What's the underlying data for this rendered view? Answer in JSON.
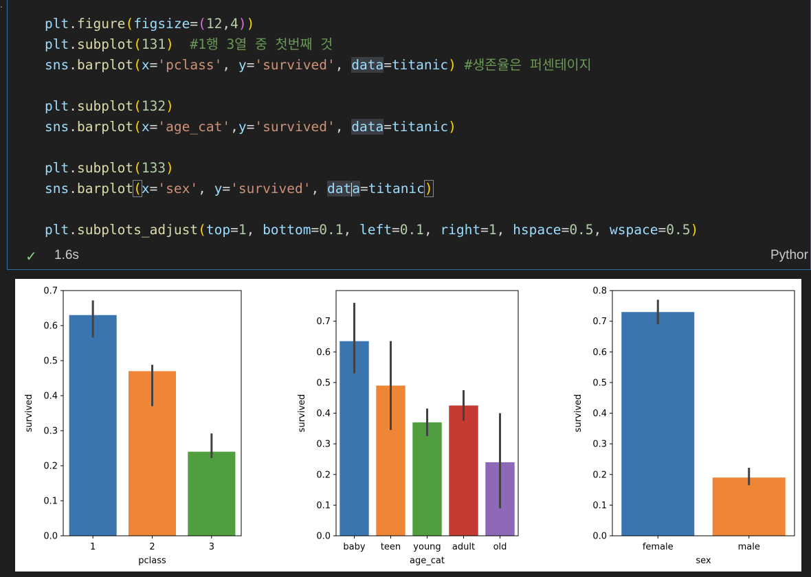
{
  "code_lines": [
    [
      {
        "t": "plt",
        "c": "var"
      },
      {
        "t": ".",
        "c": ""
      },
      {
        "t": "figure",
        "c": "fn"
      },
      {
        "t": "(",
        "c": "p1"
      },
      {
        "t": "figsize",
        "c": "kw"
      },
      {
        "t": "=",
        "c": ""
      },
      {
        "t": "(",
        "c": "p2"
      },
      {
        "t": "12",
        "c": "num"
      },
      {
        "t": ",",
        "c": ""
      },
      {
        "t": "4",
        "c": "num"
      },
      {
        "t": ")",
        "c": "p2"
      },
      {
        "t": ")",
        "c": "p1"
      }
    ],
    [
      {
        "t": "plt",
        "c": "var"
      },
      {
        "t": ".",
        "c": ""
      },
      {
        "t": "subplot",
        "c": "fn"
      },
      {
        "t": "(",
        "c": "p1"
      },
      {
        "t": "131",
        "c": "num"
      },
      {
        "t": ")",
        "c": "p1"
      },
      {
        "t": "  #1행 3열 중 첫번째 것",
        "c": "cm"
      }
    ],
    [
      {
        "t": "sns",
        "c": "var"
      },
      {
        "t": ".",
        "c": ""
      },
      {
        "t": "barplot",
        "c": "fn"
      },
      {
        "t": "(",
        "c": "p1"
      },
      {
        "t": "x",
        "c": "kw"
      },
      {
        "t": "=",
        "c": ""
      },
      {
        "t": "'pclass'",
        "c": "str"
      },
      {
        "t": ", ",
        "c": ""
      },
      {
        "t": "y",
        "c": "kw"
      },
      {
        "t": "=",
        "c": ""
      },
      {
        "t": "'survived'",
        "c": "str"
      },
      {
        "t": ", ",
        "c": ""
      },
      {
        "t": "data",
        "c": "kw hl"
      },
      {
        "t": "=",
        "c": ""
      },
      {
        "t": "titanic",
        "c": "var"
      },
      {
        "t": ")",
        "c": "p1"
      },
      {
        "t": " #생존율은 퍼센테이지",
        "c": "cm"
      }
    ],
    [],
    [
      {
        "t": "plt",
        "c": "var"
      },
      {
        "t": ".",
        "c": ""
      },
      {
        "t": "subplot",
        "c": "fn"
      },
      {
        "t": "(",
        "c": "p1"
      },
      {
        "t": "132",
        "c": "num"
      },
      {
        "t": ")",
        "c": "p1"
      }
    ],
    [
      {
        "t": "sns",
        "c": "var"
      },
      {
        "t": ".",
        "c": ""
      },
      {
        "t": "barplot",
        "c": "fn"
      },
      {
        "t": "(",
        "c": "p1"
      },
      {
        "t": "x",
        "c": "kw"
      },
      {
        "t": "=",
        "c": ""
      },
      {
        "t": "'age_cat'",
        "c": "str"
      },
      {
        "t": ",",
        "c": ""
      },
      {
        "t": "y",
        "c": "kw"
      },
      {
        "t": "=",
        "c": ""
      },
      {
        "t": "'survived'",
        "c": "str"
      },
      {
        "t": ", ",
        "c": ""
      },
      {
        "t": "data",
        "c": "kw hl"
      },
      {
        "t": "=",
        "c": ""
      },
      {
        "t": "titanic",
        "c": "var"
      },
      {
        "t": ")",
        "c": "p1"
      }
    ],
    [],
    [
      {
        "t": "plt",
        "c": "var"
      },
      {
        "t": ".",
        "c": ""
      },
      {
        "t": "subplot",
        "c": "fn"
      },
      {
        "t": "(",
        "c": "p1"
      },
      {
        "t": "133",
        "c": "num"
      },
      {
        "t": ")",
        "c": "p1"
      }
    ],
    [
      {
        "t": "sns",
        "c": "var"
      },
      {
        "t": ".",
        "c": ""
      },
      {
        "t": "barplot",
        "c": "fn"
      },
      {
        "t": "(",
        "c": "p1 pbox"
      },
      {
        "t": "x",
        "c": "kw"
      },
      {
        "t": "=",
        "c": ""
      },
      {
        "t": "'sex'",
        "c": "str"
      },
      {
        "t": ", ",
        "c": ""
      },
      {
        "t": "y",
        "c": "kw"
      },
      {
        "t": "=",
        "c": ""
      },
      {
        "t": "'survived'",
        "c": "str"
      },
      {
        "t": ", ",
        "c": ""
      },
      {
        "t": "dat",
        "c": "kw hl"
      },
      {
        "t": "|",
        "c": "cursor"
      },
      {
        "t": "a",
        "c": "kw hl"
      },
      {
        "t": "=",
        "c": ""
      },
      {
        "t": "titanic",
        "c": "var"
      },
      {
        "t": ")",
        "c": "p1 pbox"
      }
    ],
    [],
    [
      {
        "t": "plt",
        "c": "var"
      },
      {
        "t": ".",
        "c": ""
      },
      {
        "t": "subplots_adjust",
        "c": "fn"
      },
      {
        "t": "(",
        "c": "p1"
      },
      {
        "t": "top",
        "c": "kw"
      },
      {
        "t": "=",
        "c": ""
      },
      {
        "t": "1",
        "c": "num"
      },
      {
        "t": ", ",
        "c": ""
      },
      {
        "t": "bottom",
        "c": "kw"
      },
      {
        "t": "=",
        "c": ""
      },
      {
        "t": "0.1",
        "c": "num"
      },
      {
        "t": ", ",
        "c": ""
      },
      {
        "t": "left",
        "c": "kw"
      },
      {
        "t": "=",
        "c": ""
      },
      {
        "t": "0.1",
        "c": "num"
      },
      {
        "t": ", ",
        "c": ""
      },
      {
        "t": "right",
        "c": "kw"
      },
      {
        "t": "=",
        "c": ""
      },
      {
        "t": "1",
        "c": "num"
      },
      {
        "t": ", ",
        "c": ""
      },
      {
        "t": "hspace",
        "c": "kw"
      },
      {
        "t": "=",
        "c": ""
      },
      {
        "t": "0.5",
        "c": "num"
      },
      {
        "t": ", ",
        "c": ""
      },
      {
        "t": "wspace",
        "c": "kw"
      },
      {
        "t": "=",
        "c": ""
      },
      {
        "t": "0.5",
        "c": "num"
      },
      {
        "t": ")",
        "c": "p1"
      }
    ]
  ],
  "status": {
    "check_icon": "✓",
    "exec_time": "1.6s",
    "language": "Pythor"
  },
  "left_mark": ".",
  "chart_data": [
    {
      "type": "bar",
      "categories": [
        "1",
        "2",
        "3"
      ],
      "values": [
        0.63,
        0.47,
        0.24
      ],
      "error_low": [
        0.566,
        0.37,
        0.222
      ],
      "error_high": [
        0.672,
        0.488,
        0.292
      ],
      "colors": [
        "#3b75af",
        "#ef8636",
        "#519e3e"
      ],
      "xlabel": "pclass",
      "ylabel": "survived",
      "ylim": [
        0,
        0.7
      ],
      "yticks": [
        "0.0",
        "0.1",
        "0.2",
        "0.3",
        "0.4",
        "0.5",
        "0.6",
        "0.7"
      ]
    },
    {
      "type": "bar",
      "categories": [
        "baby",
        "teen",
        "young",
        "adult",
        "old"
      ],
      "values": [
        0.635,
        0.49,
        0.37,
        0.425,
        0.24
      ],
      "error_low": [
        0.53,
        0.345,
        0.325,
        0.375,
        0.09
      ],
      "error_high": [
        0.76,
        0.635,
        0.415,
        0.475,
        0.4
      ],
      "colors": [
        "#3b75af",
        "#ef8636",
        "#519e3e",
        "#c53a32",
        "#8d69b8"
      ],
      "xlabel": "age_cat",
      "ylabel": "survived",
      "ylim": [
        0,
        0.8
      ],
      "yticks": [
        "0.0",
        "0.1",
        "0.2",
        "0.3",
        "0.4",
        "0.5",
        "0.6",
        "0.7"
      ]
    },
    {
      "type": "bar",
      "categories": [
        "female",
        "male"
      ],
      "values": [
        0.73,
        0.19
      ],
      "error_low": [
        0.69,
        0.165
      ],
      "error_high": [
        0.77,
        0.222
      ],
      "colors": [
        "#3b75af",
        "#ef8636"
      ],
      "xlabel": "sex",
      "ylabel": "survived",
      "ylim": [
        0,
        0.8
      ],
      "yticks": [
        "0.0",
        "0.1",
        "0.2",
        "0.3",
        "0.4",
        "0.5",
        "0.6",
        "0.7",
        "0.8"
      ]
    }
  ]
}
